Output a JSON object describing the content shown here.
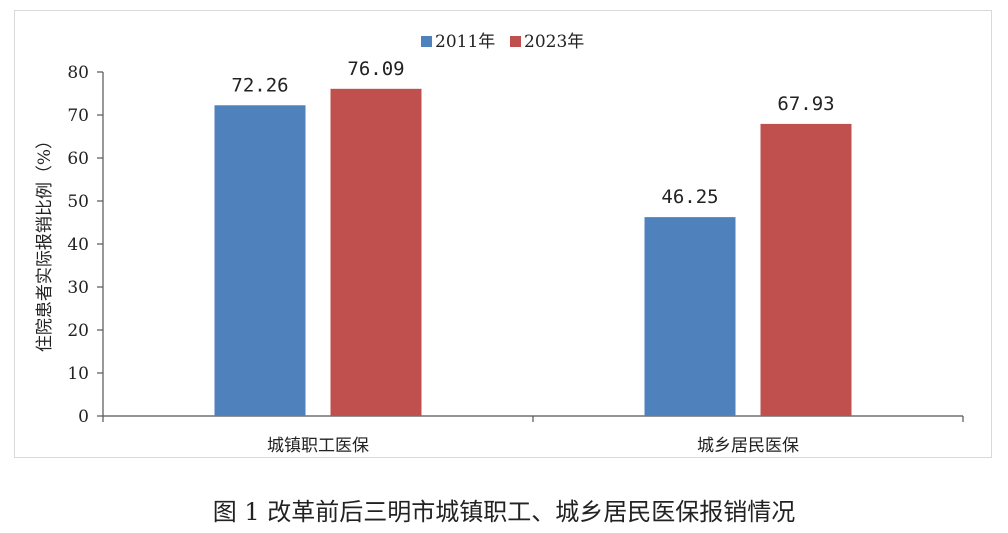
{
  "chart_data": {
    "type": "bar",
    "categories": [
      "城镇职工医保",
      "城乡居民医保"
    ],
    "series": [
      {
        "name": "2011年",
        "values": [
          72.26,
          46.25
        ],
        "labels": [
          "72.26",
          "46.25"
        ],
        "color": "#4f81bd"
      },
      {
        "name": "2023年",
        "values": [
          76.09,
          67.93
        ],
        "labels": [
          "76.09",
          "67.93"
        ],
        "color": "#c0504d"
      }
    ],
    "title": "",
    "xlabel": "",
    "ylabel": "住院患者实际报销比例（%）",
    "ylim": [
      0,
      80
    ],
    "yticks": [
      "0",
      "10",
      "20",
      "30",
      "40",
      "50",
      "60",
      "70",
      "80"
    ],
    "grid": false,
    "legend_position": "top"
  },
  "caption": "图 1 改革前后三明市城镇职工、城乡居民医保报销情况"
}
